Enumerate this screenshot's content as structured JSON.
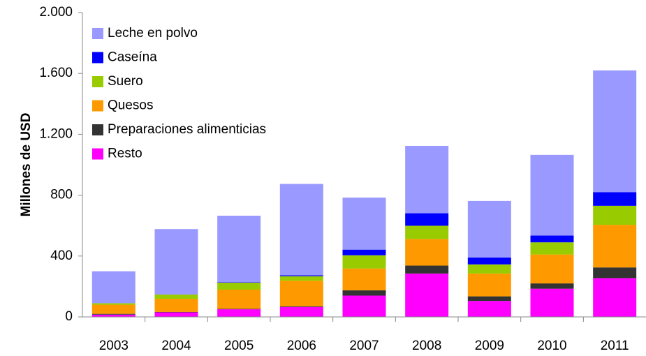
{
  "chart_data": {
    "type": "stacked_bar",
    "y_label": "Millones de USD",
    "categories": [
      "2003",
      "2004",
      "2005",
      "2006",
      "2007",
      "2008",
      "2009",
      "2010",
      "2011"
    ],
    "series": [
      {
        "name": "Resto",
        "color": "#ff00ff",
        "values": [
          15,
          30,
          50,
          65,
          140,
          285,
          105,
          185,
          255
        ]
      },
      {
        "name": "Preparaciones alimenticias",
        "color": "#333333",
        "values": [
          5,
          3,
          3,
          5,
          35,
          52,
          30,
          35,
          70
        ]
      },
      {
        "name": "Quesos",
        "color": "#ff9900",
        "values": [
          60,
          86,
          126,
          168,
          143,
          175,
          150,
          190,
          280
        ]
      },
      {
        "name": "Suero",
        "color": "#99cc00",
        "values": [
          10,
          28,
          46,
          30,
          87,
          87,
          60,
          80,
          125
        ]
      },
      {
        "name": "Caseína",
        "color": "#0000ff",
        "values": [
          0,
          0,
          2,
          6,
          37,
          82,
          45,
          45,
          90
        ]
      },
      {
        "name": "Leche en polvo",
        "color": "#9999ff",
        "values": [
          210,
          430,
          438,
          600,
          342,
          443,
          372,
          530,
          800
        ]
      }
    ],
    "ylim": [
      0,
      2000
    ],
    "yticks": [
      0,
      400,
      800,
      {
        "value": 1200,
        "label": "1.200"
      },
      {
        "value": 1600,
        "label": "1.600"
      },
      {
        "value": 2000,
        "label": "2.000"
      }
    ],
    "grid": false,
    "legend": "top-left"
  }
}
